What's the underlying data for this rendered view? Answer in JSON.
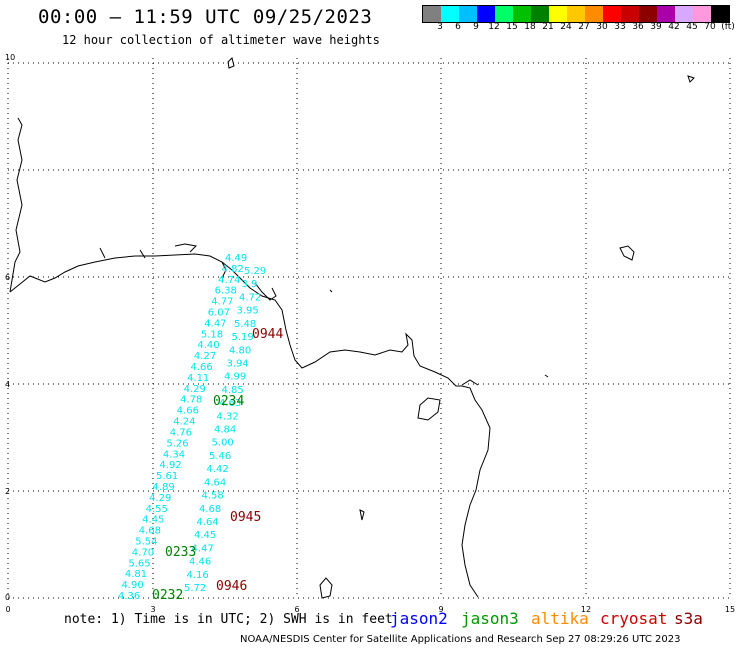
{
  "header": {
    "title": "00:00 — 11:59 UTC 09/25/2023",
    "subtitle": "12 hour collection of altimeter wave heights"
  },
  "color_scale": {
    "colors": [
      "#808080",
      "#00ffff",
      "#00bfff",
      "#0000ff",
      "#00ff66",
      "#00c000",
      "#008000",
      "#ffff00",
      "#ffc800",
      "#ff8c00",
      "#ff0000",
      "#c80000",
      "#8c0000",
      "#aa00aa",
      "#d8a8ff",
      "#ff99dd",
      "#000000"
    ],
    "labels": [
      "3",
      "6",
      "9",
      "12",
      "15",
      "18",
      "21",
      "24",
      "27",
      "30",
      "33",
      "36",
      "39",
      "42",
      "45",
      "70",
      "(ft)"
    ]
  },
  "axes": {
    "x_ticks": [
      "0",
      "3",
      "6",
      "9",
      "12",
      "15"
    ],
    "y_ticks": [
      "0",
      "2",
      "4",
      "6",
      "10"
    ]
  },
  "tracks": {
    "cyan_color": "#00e5ee",
    "track1": [
      "4.36",
      "4.90",
      "4.81",
      "5.65",
      "4.70",
      "5.54",
      "4.68",
      "4.45",
      "4.55",
      "4.29",
      "4.89",
      "5.61",
      "4.92",
      "4.34",
      "5.26",
      "4.76",
      "4.24",
      "4.66",
      "4.78",
      "4.29",
      "4.11",
      "4.66",
      "4.27",
      "4.40",
      "5.18",
      "4.47",
      "6.07",
      "4.77",
      "6.38",
      "4.74",
      "4.82",
      "4.49"
    ],
    "track2": [
      "5.72",
      "4.16",
      "4.46",
      "4.47",
      "4.45",
      "4.64",
      "4.68",
      "4.58",
      "4.64",
      "4.42",
      "5.46",
      "5.00",
      "4.84",
      "4.32",
      "4.63",
      "4.85",
      "4.99",
      "3.94",
      "4.80",
      "5.19",
      "5.48",
      "3.95",
      "4.72",
      "3.9",
      "5.29"
    ],
    "time_labels": [
      {
        "text": "0944",
        "color": "#8b0000"
      },
      {
        "text": "0234",
        "color": "#008000"
      },
      {
        "text": "0945",
        "color": "#8b0000"
      },
      {
        "text": "0233",
        "color": "#008000"
      },
      {
        "text": "0946",
        "color": "#8b0000"
      },
      {
        "text": "0232",
        "color": "#008000"
      }
    ]
  },
  "footer": {
    "note": "note: 1) Time is in UTC; 2) SWH is in feet",
    "legend": [
      {
        "text": "jason2",
        "color": "#0000ff"
      },
      {
        "text": "jason3",
        "color": "#009900"
      },
      {
        "text": "altika",
        "color": "#ff8c00"
      },
      {
        "text": "cryosat",
        "color": "#cc0000"
      },
      {
        "text": "s3a",
        "color": "#8b0000"
      }
    ],
    "credit": "NOAA/NESDIS Center for Satellite Applications and Research    Sep 27 08:29:26 UTC 2023"
  }
}
